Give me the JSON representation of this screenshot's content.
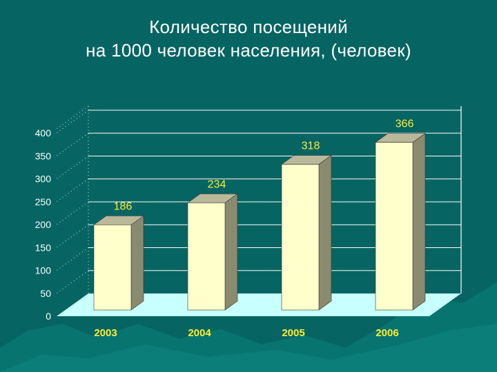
{
  "title_line1": "Количество посещений",
  "title_line2": "на 1000 человек населения, (человек)",
  "colors": {
    "background": "#066563",
    "floor": "#c8ffff",
    "bar_front": "#ffffcc",
    "bar_side": "#8a8a6e",
    "bar_top": "#b8b89a",
    "labels": "#ffee33",
    "grid": "#ffffff"
  },
  "chart_data": {
    "type": "bar",
    "categories": [
      "2003",
      "2004",
      "2005",
      "2006"
    ],
    "values": [
      186,
      234,
      318,
      366
    ],
    "title": "Количество посещений на 1000 человек населения, (человек)",
    "xlabel": "",
    "ylabel": "",
    "ylim": [
      0,
      400
    ],
    "yticks": [
      "0",
      "50",
      "100",
      "150",
      "200",
      "250",
      "300",
      "350",
      "400"
    ],
    "grid": true,
    "data_labels": [
      "186",
      "234",
      "318",
      "366"
    ],
    "style": "3d-column"
  }
}
